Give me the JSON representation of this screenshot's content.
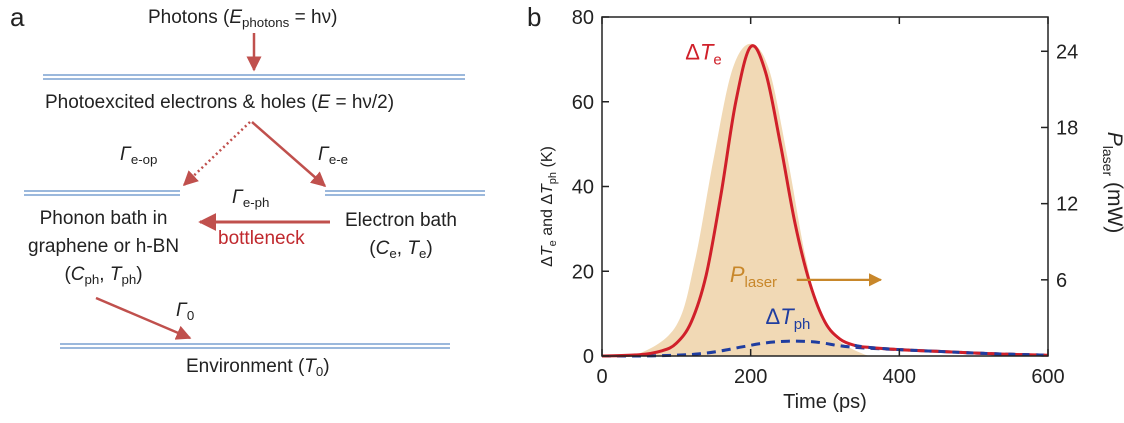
{
  "panel_a": {
    "label": "a",
    "photons": {
      "prefix": "Photons (",
      "E": "E",
      "sub": "photons",
      "suffix": " = hν)"
    },
    "photoexcited": {
      "prefix": "Photoexcited electrons & holes (",
      "E": "E",
      "eq": " = hν/2)"
    },
    "rate_eop": {
      "gamma": "Γ",
      "sub": "e-op"
    },
    "rate_ee": {
      "gamma": "Γ",
      "sub": "e-e"
    },
    "rate_eph": {
      "gamma": "Γ",
      "sub": "e-ph"
    },
    "rate_0": {
      "gamma": "Γ",
      "sub": "0"
    },
    "bottleneck": "bottleneck",
    "phonon_bath": {
      "line1": "Phonon bath in",
      "line2": "graphene or h-BN",
      "C": "C",
      "C_sub": "ph",
      "T": "T",
      "T_sub": "ph"
    },
    "electron_bath": {
      "line1": "Electron bath",
      "C": "C",
      "C_sub": "e",
      "T": "T",
      "T_sub": "e"
    },
    "environment": {
      "prefix": "Environment (",
      "T": "T",
      "T_sub": "0",
      "suffix": ")"
    }
  },
  "panel_b": {
    "label": "b",
    "colors": {
      "electron": "#d0202a",
      "phonon": "#1f3da0",
      "laser": "#c8872a",
      "fill": "#f1d9b5"
    },
    "annotations": {
      "dTe": {
        "delta": "Δ",
        "T": "T",
        "sub": "e"
      },
      "dTph": {
        "delta": "Δ",
        "T": "T",
        "sub": "ph"
      },
      "Plaser": {
        "P": "P",
        "sub": "laser"
      }
    }
  },
  "chart_data": {
    "type": "line",
    "xlabel": "Time (ps)",
    "ylabel_left": "ΔTe and ΔTph (K)",
    "ylabel_right": "Plaser (mW)",
    "xlim": [
      0,
      600
    ],
    "ylim_left": [
      0,
      80
    ],
    "ylim_right": [
      0,
      26.7
    ],
    "x_ticks": [
      0,
      200,
      400,
      600
    ],
    "y_ticks_left": [
      0,
      20,
      40,
      60,
      80
    ],
    "y_ticks_right": [
      6,
      12,
      18,
      24
    ],
    "series": [
      {
        "name": "ΔTe",
        "style": "solid",
        "x": [
          0,
          50,
          80,
          100,
          120,
          140,
          160,
          180,
          200,
          220,
          240,
          260,
          280,
          300,
          320,
          340,
          360,
          400,
          450,
          500,
          550,
          600
        ],
        "y": [
          0,
          0.3,
          1.2,
          3,
          8,
          19,
          38,
          60,
          73,
          67,
          50,
          31,
          17,
          8,
          4,
          2.5,
          2,
          1.5,
          1.1,
          0.7,
          0.4,
          0.2
        ]
      },
      {
        "name": "ΔTph",
        "style": "dashed",
        "x": [
          0,
          50,
          100,
          130,
          160,
          190,
          220,
          250,
          280,
          300,
          320,
          350,
          400,
          450,
          500,
          550,
          600
        ],
        "y": [
          0,
          0,
          0.2,
          0.5,
          1.2,
          2.2,
          3.1,
          3.5,
          3.4,
          3,
          2.4,
          1.9,
          1.5,
          1.1,
          0.7,
          0.4,
          0.2
        ]
      },
      {
        "name": "Plaser",
        "style": "filled",
        "x": [
          0,
          50,
          100,
          125,
          150,
          175,
          200,
          225,
          250,
          275,
          300,
          350,
          400,
          600
        ],
        "y": [
          0,
          0.2,
          2.4,
          7.5,
          15.5,
          22.5,
          24.6,
          22.5,
          15.5,
          7.5,
          2.4,
          0.2,
          0,
          0
        ]
      }
    ]
  }
}
